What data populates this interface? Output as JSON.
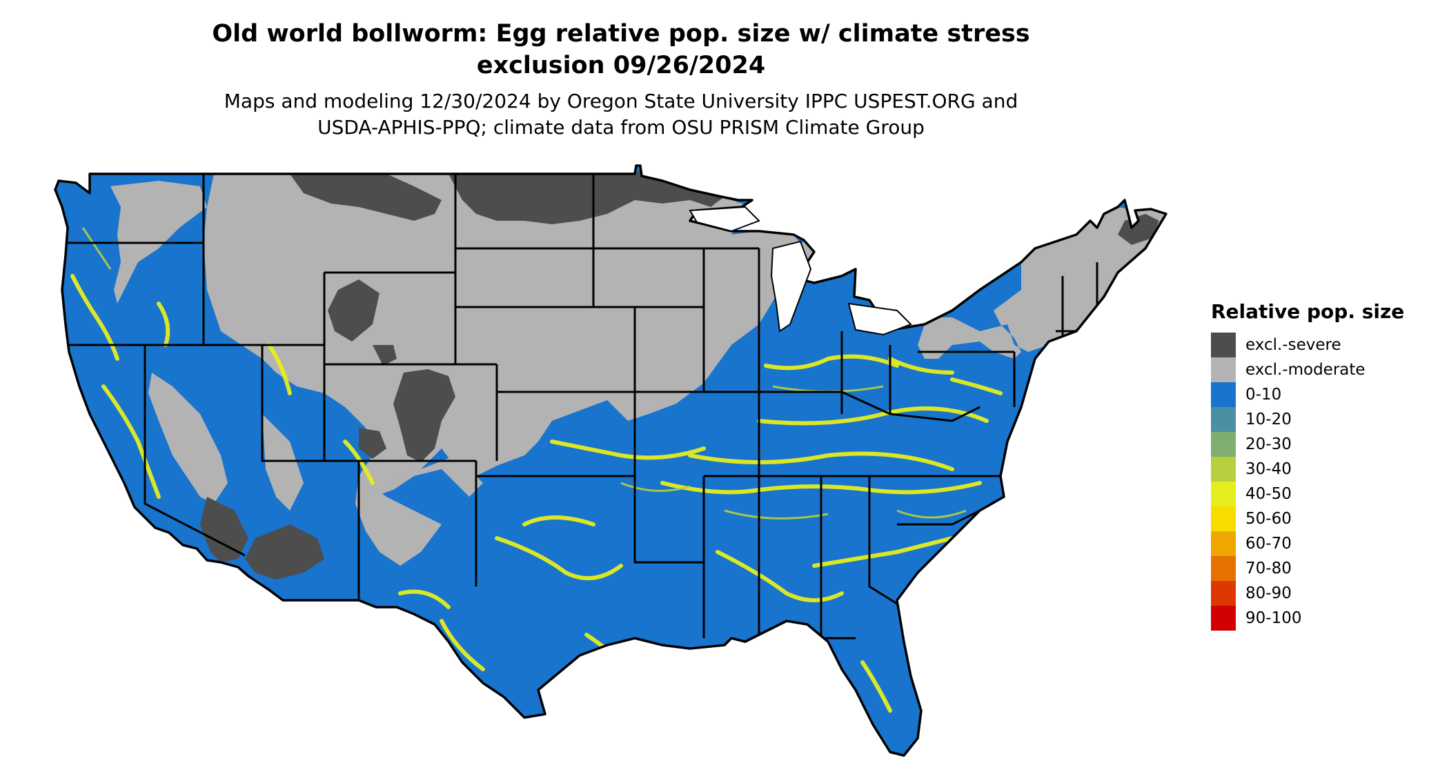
{
  "title": {
    "line1": "Old world bollworm: Egg relative pop. size w/ climate stress",
    "line2": "exclusion 09/26/2024"
  },
  "subtitle": {
    "line1": "Maps and modeling 12/30/2024 by Oregon State University IPPC USPEST.ORG and",
    "line2": "USDA-APHIS-PPQ; climate data from OSU PRISM Climate Group"
  },
  "map": {
    "region": "Contiguous United States",
    "colors": {
      "excl_severe": "#4d4d4d",
      "excl_moderate": "#b3b3b3",
      "band_0_10": "#1874cd",
      "band_40_50": "#e6ee1e",
      "state_border": "#000000"
    }
  },
  "legend": {
    "title": "Relative pop. size",
    "items": [
      {
        "label": "excl.-severe",
        "color": "#4d4d4d"
      },
      {
        "label": "excl.-moderate",
        "color": "#b3b3b3"
      },
      {
        "label": "0-10",
        "color": "#1874cd"
      },
      {
        "label": "10-20",
        "color": "#4a90a4"
      },
      {
        "label": "20-30",
        "color": "#7fae70"
      },
      {
        "label": "30-40",
        "color": "#b5d03c"
      },
      {
        "label": "40-50",
        "color": "#e6ee1e"
      },
      {
        "label": "50-60",
        "color": "#f8dc00"
      },
      {
        "label": "60-70",
        "color": "#f0a600"
      },
      {
        "label": "70-80",
        "color": "#e67000"
      },
      {
        "label": "80-90",
        "color": "#dc3800"
      },
      {
        "label": "90-100",
        "color": "#d20000"
      }
    ]
  }
}
